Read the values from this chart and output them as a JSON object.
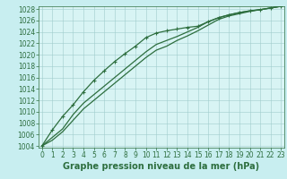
{
  "title": "Graphe pression niveau de la mer (hPa)",
  "background_color": "#c8eef0",
  "plot_bg_color": "#d8f4f4",
  "grid_color": "#a0cccc",
  "line_color": "#2d6e3e",
  "hours": [
    0,
    1,
    2,
    3,
    4,
    5,
    6,
    7,
    8,
    9,
    10,
    11,
    12,
    13,
    14,
    15,
    16,
    17,
    18,
    19,
    20,
    21,
    22,
    23
  ],
  "line_marker": [
    1004.0,
    1006.8,
    1009.2,
    1011.2,
    1013.5,
    1015.5,
    1017.2,
    1018.8,
    1020.2,
    1021.5,
    1023.0,
    1023.8,
    1024.2,
    1024.5,
    1024.8,
    1025.0,
    1025.8,
    1026.5,
    1027.0,
    1027.4,
    1027.7,
    1027.9,
    1028.2,
    1028.5
  ],
  "line_mid": [
    1004.0,
    1005.5,
    1007.0,
    1009.5,
    1011.5,
    1013.0,
    1014.5,
    1016.0,
    1017.5,
    1019.0,
    1020.5,
    1021.8,
    1022.5,
    1023.2,
    1024.0,
    1024.8,
    1025.8,
    1026.5,
    1027.0,
    1027.4,
    1027.7,
    1027.9,
    1028.2,
    1028.5
  ],
  "line_low": [
    1004.0,
    1005.0,
    1006.5,
    1008.5,
    1010.5,
    1012.0,
    1013.5,
    1015.0,
    1016.5,
    1018.0,
    1019.5,
    1020.8,
    1021.5,
    1022.5,
    1023.3,
    1024.2,
    1025.2,
    1026.2,
    1026.8,
    1027.2,
    1027.6,
    1027.9,
    1028.2,
    1028.5
  ],
  "ylim": [
    1004,
    1028
  ],
  "xlim": [
    0,
    23
  ],
  "yticks": [
    1004,
    1006,
    1008,
    1010,
    1012,
    1014,
    1016,
    1018,
    1020,
    1022,
    1024,
    1026,
    1028
  ],
  "xticks": [
    0,
    1,
    2,
    3,
    4,
    5,
    6,
    7,
    8,
    9,
    10,
    11,
    12,
    13,
    14,
    15,
    16,
    17,
    18,
    19,
    20,
    21,
    22,
    23
  ],
  "title_fontsize": 7.0,
  "tick_fontsize": 5.5,
  "lw": 0.9
}
